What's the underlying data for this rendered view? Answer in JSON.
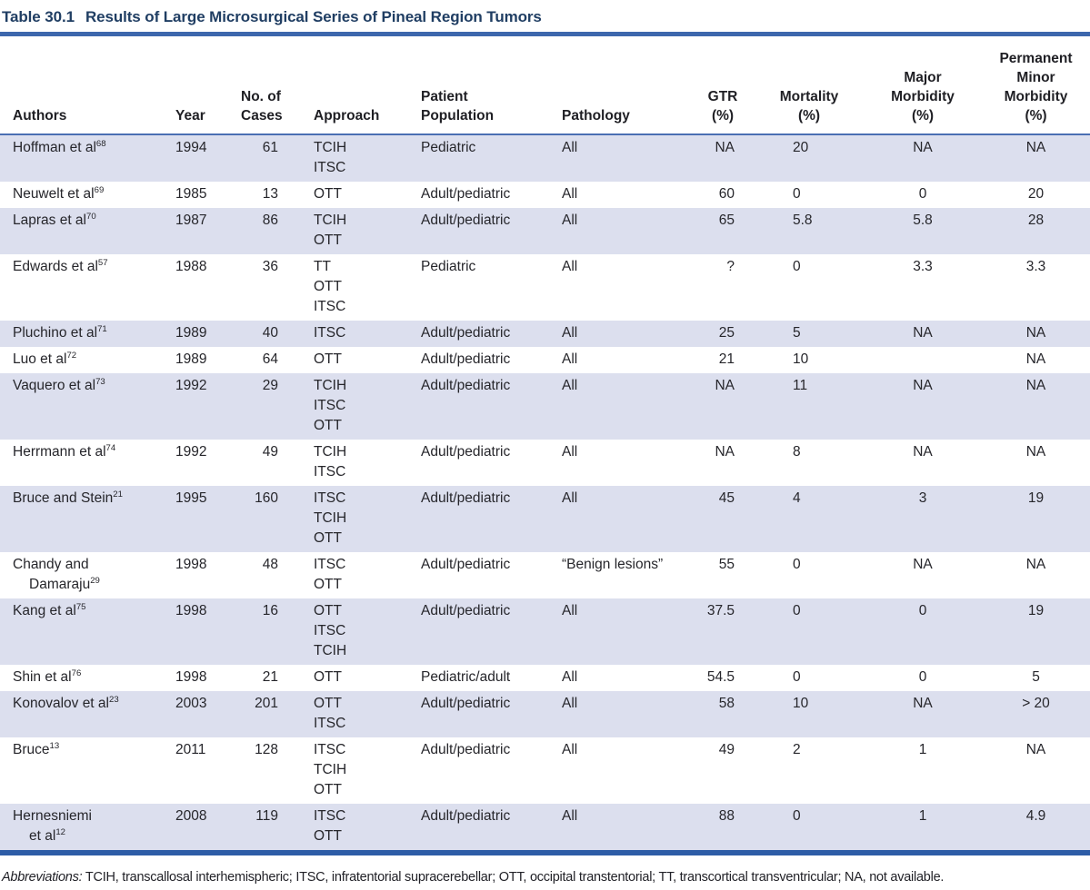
{
  "title": {
    "label": "Table 30.1",
    "text": "Results of Large Microsurgical Series of Pineal Region Tumors"
  },
  "colors": {
    "row_shade": "#dcdfee",
    "rule_top": "#3d67ad",
    "rule_header": "#4a6fb3",
    "rule_bottom": "#2d5ca6",
    "title_color": "#203e63"
  },
  "table": {
    "columns": [
      {
        "key": "authors",
        "lines": [
          "Authors"
        ]
      },
      {
        "key": "year",
        "lines": [
          "Year"
        ]
      },
      {
        "key": "cases",
        "lines": [
          "No. of",
          "Cases"
        ]
      },
      {
        "key": "approach",
        "lines": [
          "Approach"
        ]
      },
      {
        "key": "population",
        "lines": [
          "Patient",
          "Population"
        ]
      },
      {
        "key": "pathology",
        "lines": [
          "Pathology"
        ]
      },
      {
        "key": "gtr",
        "lines": [
          "GTR",
          "(%)"
        ]
      },
      {
        "key": "mortality",
        "lines": [
          "Mortality",
          "(%)"
        ]
      },
      {
        "key": "major-morbidity",
        "lines": [
          "Major",
          "Morbidity",
          "(%)"
        ]
      },
      {
        "key": "perm-minor-morbidity",
        "lines": [
          "Permanent",
          "Minor",
          "Morbidity",
          "(%)"
        ]
      }
    ],
    "rows": [
      {
        "author": {
          "line1": "Hoffman et al",
          "line2": null,
          "ref": "68"
        },
        "year": "1994",
        "cases": "61",
        "approach": [
          "TCIH",
          "ITSC"
        ],
        "population": "Pediatric",
        "pathology": "All",
        "gtr": "NA",
        "mortality": "20",
        "major_morbidity": "NA",
        "perm_minor_morbidity": "NA"
      },
      {
        "author": {
          "line1": "Neuwelt et al",
          "line2": null,
          "ref": "69"
        },
        "year": "1985",
        "cases": "13",
        "approach": [
          "OTT"
        ],
        "population": "Adult/pediatric",
        "pathology": "All",
        "gtr": "60",
        "mortality": "0",
        "major_morbidity": "0",
        "perm_minor_morbidity": "20"
      },
      {
        "author": {
          "line1": "Lapras et al",
          "line2": null,
          "ref": "70"
        },
        "year": "1987",
        "cases": "86",
        "approach": [
          "TCIH",
          "OTT"
        ],
        "population": "Adult/pediatric",
        "pathology": "All",
        "gtr": "65",
        "mortality": "5.8",
        "major_morbidity": "5.8",
        "perm_minor_morbidity": "28"
      },
      {
        "author": {
          "line1": "Edwards et al",
          "line2": null,
          "ref": "57"
        },
        "year": "1988",
        "cases": "36",
        "approach": [
          "TT",
          "OTT",
          "ITSC"
        ],
        "population": "Pediatric",
        "pathology": "All",
        "gtr": "?",
        "mortality": "0",
        "major_morbidity": "3.3",
        "perm_minor_morbidity": "3.3"
      },
      {
        "author": {
          "line1": "Pluchino et al",
          "line2": null,
          "ref": "71"
        },
        "year": "1989",
        "cases": "40",
        "approach": [
          "ITSC"
        ],
        "population": "Adult/pediatric",
        "pathology": "All",
        "gtr": "25",
        "mortality": "5",
        "major_morbidity": "NA",
        "perm_minor_morbidity": "NA"
      },
      {
        "author": {
          "line1": "Luo et al",
          "line2": null,
          "ref": "72"
        },
        "year": "1989",
        "cases": "64",
        "approach": [
          "OTT"
        ],
        "population": "Adult/pediatric",
        "pathology": "All",
        "gtr": "21",
        "mortality": "10",
        "major_morbidity": "",
        "perm_minor_morbidity": "NA"
      },
      {
        "author": {
          "line1": "Vaquero et al",
          "line2": null,
          "ref": "73"
        },
        "year": "1992",
        "cases": "29",
        "approach": [
          "TCIH",
          "ITSC",
          "OTT"
        ],
        "population": "Adult/pediatric",
        "pathology": "All",
        "gtr": "NA",
        "mortality": "11",
        "major_morbidity": "NA",
        "perm_minor_morbidity": "NA"
      },
      {
        "author": {
          "line1": "Herrmann et al",
          "line2": null,
          "ref": "74"
        },
        "year": "1992",
        "cases": "49",
        "approach": [
          "TCIH",
          "ITSC"
        ],
        "population": "Adult/pediatric",
        "pathology": "All",
        "gtr": "NA",
        "mortality": "8",
        "major_morbidity": "NA",
        "perm_minor_morbidity": "NA"
      },
      {
        "author": {
          "line1": "Bruce and Stein",
          "line2": null,
          "ref": "21"
        },
        "year": "1995",
        "cases": "160",
        "approach": [
          "ITSC",
          "TCIH",
          "OTT"
        ],
        "population": "Adult/pediatric",
        "pathology": "All",
        "gtr": "45",
        "mortality": "4",
        "major_morbidity": "3",
        "perm_minor_morbidity": "19"
      },
      {
        "author": {
          "line1": "Chandy and",
          "line2": "Damaraju",
          "ref": "29"
        },
        "year": "1998",
        "cases": "48",
        "approach": [
          "ITSC",
          "OTT"
        ],
        "population": "Adult/pediatric",
        "pathology": "“Benign lesions”",
        "gtr": "55",
        "mortality": "0",
        "major_morbidity": "NA",
        "perm_minor_morbidity": "NA"
      },
      {
        "author": {
          "line1": "Kang et al",
          "line2": null,
          "ref": "75"
        },
        "year": "1998",
        "cases": "16",
        "approach": [
          "OTT",
          "ITSC",
          "TCIH"
        ],
        "population": "Adult/pediatric",
        "pathology": "All",
        "gtr": "37.5",
        "mortality": "0",
        "major_morbidity": "0",
        "perm_minor_morbidity": "19"
      },
      {
        "author": {
          "line1": "Shin et al",
          "line2": null,
          "ref": "76"
        },
        "year": "1998",
        "cases": "21",
        "approach": [
          "OTT"
        ],
        "population": "Pediatric/adult",
        "pathology": "All",
        "gtr": "54.5",
        "mortality": "0",
        "major_morbidity": "0",
        "perm_minor_morbidity": "5"
      },
      {
        "author": {
          "line1": "Konovalov et al",
          "line2": null,
          "ref": "23"
        },
        "year": "2003",
        "cases": "201",
        "approach": [
          "OTT",
          "ITSC"
        ],
        "population": "Adult/pediatric",
        "pathology": "All",
        "gtr": "58",
        "mortality": "10",
        "major_morbidity": "NA",
        "perm_minor_morbidity": "> 20"
      },
      {
        "author": {
          "line1": "Bruce",
          "line2": null,
          "ref": "13"
        },
        "year": "2011",
        "cases": "128",
        "approach": [
          "ITSC",
          "TCIH",
          "OTT"
        ],
        "population": "Adult/pediatric",
        "pathology": "All",
        "gtr": "49",
        "mortality": "2",
        "major_morbidity": "1",
        "perm_minor_morbidity": "NA"
      },
      {
        "author": {
          "line1": "Hernesniemi",
          "line2": "et al",
          "ref": "12"
        },
        "year": "2008",
        "cases": "119",
        "approach": [
          "ITSC",
          "OTT"
        ],
        "population": "Adult/pediatric",
        "pathology": "All",
        "gtr": "88",
        "mortality": "0",
        "major_morbidity": "1",
        "perm_minor_morbidity": "4.9"
      }
    ]
  },
  "footnote": {
    "label": "Abbreviations:",
    "text": " TCIH, transcallosal interhemispheric; ITSC, infratentorial supracerebellar; OTT, occipital transtentorial; TT, transcortical transventricular; NA, not available."
  }
}
